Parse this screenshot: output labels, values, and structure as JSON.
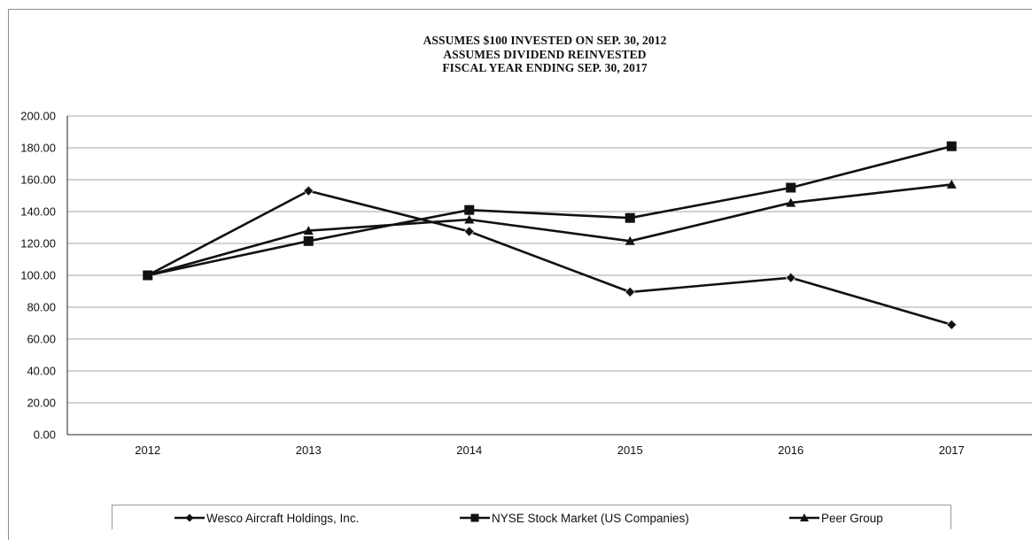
{
  "chart_data": {
    "type": "line",
    "title_lines": [
      "ASSUMES $100 INVESTED ON SEP. 30, 2012",
      "ASSUMES DIVIDEND REINVESTED",
      "FISCAL YEAR ENDING SEP. 30, 2017"
    ],
    "categories": [
      "2012",
      "2013",
      "2014",
      "2015",
      "2016",
      "2017"
    ],
    "ylim": [
      0,
      200
    ],
    "yticks": [
      "0.00",
      "20.00",
      "40.00",
      "60.00",
      "80.00",
      "100.00",
      "120.00",
      "140.00",
      "160.00",
      "180.00",
      "200.00"
    ],
    "grid": true,
    "legend_position": "bottom",
    "series": [
      {
        "name": "Wesco Aircraft Holdings, Inc.",
        "marker": "diamond",
        "color": "#111111",
        "values": [
          100.0,
          153.0,
          127.5,
          89.5,
          98.5,
          69.0
        ]
      },
      {
        "name": "NYSE Stock Market (US Companies)",
        "marker": "square",
        "color": "#111111",
        "values": [
          100.0,
          121.5,
          141.0,
          136.0,
          155.0,
          181.0
        ]
      },
      {
        "name": "Peer Group",
        "marker": "triangle",
        "color": "#111111",
        "values": [
          100.0,
          128.0,
          135.0,
          121.5,
          145.5,
          157.0
        ]
      }
    ]
  }
}
